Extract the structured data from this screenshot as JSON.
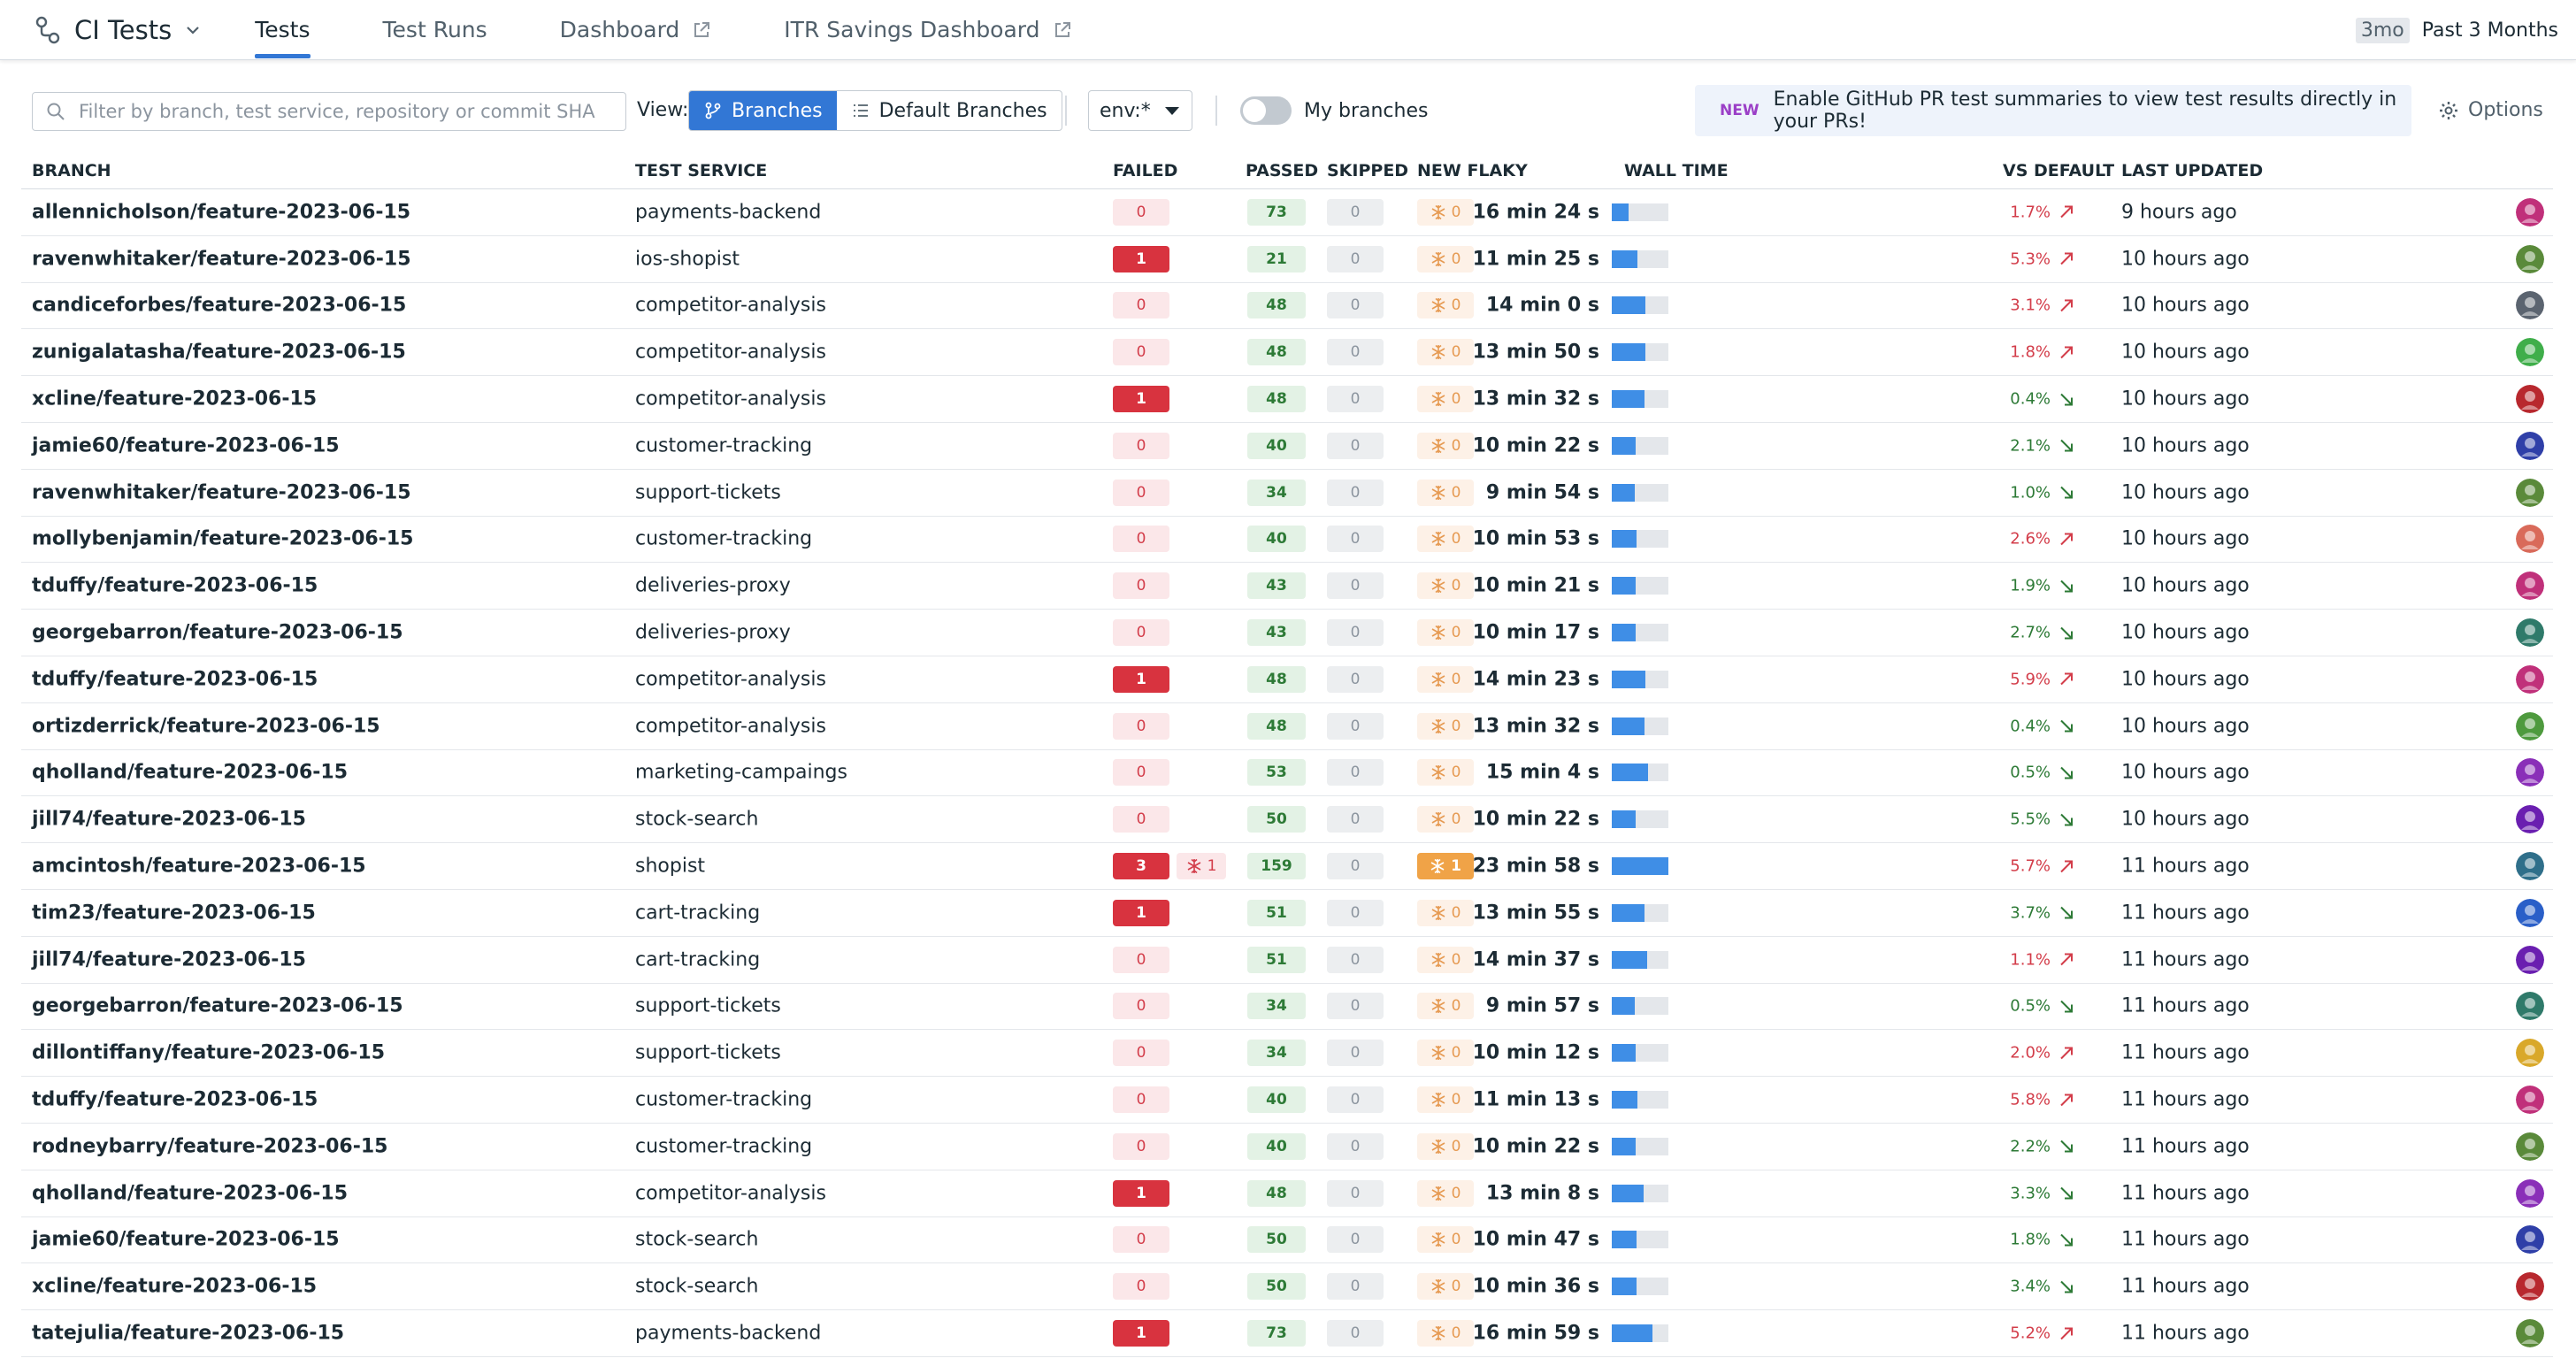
{
  "app": {
    "title": "CI Tests"
  },
  "tabs": [
    {
      "label": "Tests",
      "active": true,
      "external": false
    },
    {
      "label": "Test Runs",
      "active": false,
      "external": false
    },
    {
      "label": "Dashboard",
      "active": false,
      "external": true
    },
    {
      "label": "ITR Savings Dashboard",
      "active": false,
      "external": true
    }
  ],
  "time_range": {
    "short": "3mo",
    "label": "Past 3 Months"
  },
  "toolbar": {
    "search_placeholder": "Filter by branch, test service, repository or commit SHA",
    "view_label": "View:",
    "view_options": [
      "Branches",
      "Default Branches"
    ],
    "env_value": "env:*",
    "my_branches_label": "My branches",
    "banner_tag": "NEW",
    "banner_text": "Enable GitHub PR test summaries to view test results directly in your PRs!",
    "options_label": "Options"
  },
  "columns": {
    "branch": "BRANCH",
    "service": "TEST SERVICE",
    "failed": "FAILED",
    "passed": "PASSED",
    "skipped": "SKIPPED",
    "new_flaky": "NEW FLAKY",
    "wall_time": "WALL TIME",
    "vs_default": "VS DEFAULT",
    "last_updated": "LAST UPDATED"
  },
  "colors": {
    "accent": "#3277d5",
    "failed": "#d8333f",
    "passed": "#2d7a36",
    "flaky": "#e69a52"
  },
  "rows": [
    {
      "branch": "allennicholson/feature-2023-06-15",
      "service": "payments-backend",
      "failed": "0",
      "passed": "73",
      "skipped": "0",
      "new_flaky": "0",
      "wall_time": "16 min 24 s",
      "wall_fraction": 0.3,
      "vs": "1.7%",
      "dir": "up",
      "updated": "9 hours ago",
      "avatar": "#c0307a"
    },
    {
      "branch": "ravenwhitaker/feature-2023-06-15",
      "service": "ios-shopist",
      "failed": "1",
      "passed": "21",
      "skipped": "0",
      "new_flaky": "0",
      "wall_time": "11 min 25 s",
      "wall_fraction": 0.45,
      "vs": "5.3%",
      "dir": "up",
      "updated": "10 hours ago",
      "avatar": "#5a8a3a"
    },
    {
      "branch": "candiceforbes/feature-2023-06-15",
      "service": "competitor-analysis",
      "failed": "0",
      "passed": "48",
      "skipped": "0",
      "new_flaky": "0",
      "wall_time": "14 min 0 s",
      "wall_fraction": 0.6,
      "vs": "3.1%",
      "dir": "up",
      "updated": "10 hours ago",
      "avatar": "#5b6470"
    },
    {
      "branch": "zunigalatasha/feature-2023-06-15",
      "service": "competitor-analysis",
      "failed": "0",
      "passed": "48",
      "skipped": "0",
      "new_flaky": "0",
      "wall_time": "13 min 50 s",
      "wall_fraction": 0.6,
      "vs": "1.8%",
      "dir": "up",
      "updated": "10 hours ago",
      "avatar": "#3fae4a"
    },
    {
      "branch": "xcline/feature-2023-06-15",
      "service": "competitor-analysis",
      "failed": "1",
      "passed": "48",
      "skipped": "0",
      "new_flaky": "0",
      "wall_time": "13 min 32 s",
      "wall_fraction": 0.58,
      "vs": "0.4%",
      "dir": "down",
      "updated": "10 hours ago",
      "avatar": "#b8282e"
    },
    {
      "branch": "jamie60/feature-2023-06-15",
      "service": "customer-tracking",
      "failed": "0",
      "passed": "40",
      "skipped": "0",
      "new_flaky": "0",
      "wall_time": "10 min 22 s",
      "wall_fraction": 0.42,
      "vs": "2.1%",
      "dir": "down",
      "updated": "10 hours ago",
      "avatar": "#2f3fa8"
    },
    {
      "branch": "ravenwhitaker/feature-2023-06-15",
      "service": "support-tickets",
      "failed": "0",
      "passed": "34",
      "skipped": "0",
      "new_flaky": "0",
      "wall_time": "9 min 54 s",
      "wall_fraction": 0.4,
      "vs": "1.0%",
      "dir": "down",
      "updated": "10 hours ago",
      "avatar": "#5a8a3a"
    },
    {
      "branch": "mollybenjamin/feature-2023-06-15",
      "service": "customer-tracking",
      "failed": "0",
      "passed": "40",
      "skipped": "0",
      "new_flaky": "0",
      "wall_time": "10 min 53 s",
      "wall_fraction": 0.44,
      "vs": "2.6%",
      "dir": "up",
      "updated": "10 hours ago",
      "avatar": "#d96a5a"
    },
    {
      "branch": "tduffy/feature-2023-06-15",
      "service": "deliveries-proxy",
      "failed": "0",
      "passed": "43",
      "skipped": "0",
      "new_flaky": "0",
      "wall_time": "10 min 21 s",
      "wall_fraction": 0.42,
      "vs": "1.9%",
      "dir": "down",
      "updated": "10 hours ago",
      "avatar": "#c0307a"
    },
    {
      "branch": "georgebarron/feature-2023-06-15",
      "service": "deliveries-proxy",
      "failed": "0",
      "passed": "43",
      "skipped": "0",
      "new_flaky": "0",
      "wall_time": "10 min 17 s",
      "wall_fraction": 0.42,
      "vs": "2.7%",
      "dir": "down",
      "updated": "10 hours ago",
      "avatar": "#2f7a6a"
    },
    {
      "branch": "tduffy/feature-2023-06-15",
      "service": "competitor-analysis",
      "failed": "1",
      "passed": "48",
      "skipped": "0",
      "new_flaky": "0",
      "wall_time": "14 min 23 s",
      "wall_fraction": 0.6,
      "vs": "5.9%",
      "dir": "up",
      "updated": "10 hours ago",
      "avatar": "#c0307a"
    },
    {
      "branch": "ortizderrick/feature-2023-06-15",
      "service": "competitor-analysis",
      "failed": "0",
      "passed": "48",
      "skipped": "0",
      "new_flaky": "0",
      "wall_time": "13 min 32 s",
      "wall_fraction": 0.58,
      "vs": "0.4%",
      "dir": "down",
      "updated": "10 hours ago",
      "avatar": "#4e9a3e"
    },
    {
      "branch": "qholland/feature-2023-06-15",
      "service": "marketing-campaings",
      "failed": "0",
      "passed": "53",
      "skipped": "0",
      "new_flaky": "0",
      "wall_time": "15 min 4 s",
      "wall_fraction": 0.64,
      "vs": "0.5%",
      "dir": "down",
      "updated": "10 hours ago",
      "avatar": "#8a2fb8"
    },
    {
      "branch": "jill74/feature-2023-06-15",
      "service": "stock-search",
      "failed": "0",
      "passed": "50",
      "skipped": "0",
      "new_flaky": "0",
      "wall_time": "10 min 22 s",
      "wall_fraction": 0.42,
      "vs": "5.5%",
      "dir": "down",
      "updated": "10 hours ago",
      "avatar": "#6a1fb0"
    },
    {
      "branch": "amcintosh/feature-2023-06-15",
      "service": "shopist",
      "failed": "3",
      "flaky_failed": "1",
      "passed": "159",
      "skipped": "0",
      "new_flaky": "1",
      "wall_time": "23 min 58 s",
      "wall_fraction": 1.0,
      "vs": "5.7%",
      "dir": "up",
      "updated": "11 hours ago",
      "avatar": "#2f6f8a"
    },
    {
      "branch": "tim23/feature-2023-06-15",
      "service": "cart-tracking",
      "failed": "1",
      "passed": "51",
      "skipped": "0",
      "new_flaky": "0",
      "wall_time": "13 min 55 s",
      "wall_fraction": 0.58,
      "vs": "3.7%",
      "dir": "down",
      "updated": "11 hours ago",
      "avatar": "#2a5fc8"
    },
    {
      "branch": "jill74/feature-2023-06-15",
      "service": "cart-tracking",
      "failed": "0",
      "passed": "51",
      "skipped": "0",
      "new_flaky": "0",
      "wall_time": "14 min 37 s",
      "wall_fraction": 0.62,
      "vs": "1.1%",
      "dir": "up",
      "updated": "11 hours ago",
      "avatar": "#6a1fb0"
    },
    {
      "branch": "georgebarron/feature-2023-06-15",
      "service": "support-tickets",
      "failed": "0",
      "passed": "34",
      "skipped": "0",
      "new_flaky": "0",
      "wall_time": "9 min 57 s",
      "wall_fraction": 0.4,
      "vs": "0.5%",
      "dir": "down",
      "updated": "11 hours ago",
      "avatar": "#2f7a6a"
    },
    {
      "branch": "dillontiffany/feature-2023-06-15",
      "service": "support-tickets",
      "failed": "0",
      "passed": "34",
      "skipped": "0",
      "new_flaky": "0",
      "wall_time": "10 min 12 s",
      "wall_fraction": 0.42,
      "vs": "2.0%",
      "dir": "up",
      "updated": "11 hours ago",
      "avatar": "#d9a82a"
    },
    {
      "branch": "tduffy/feature-2023-06-15",
      "service": "customer-tracking",
      "failed": "0",
      "passed": "40",
      "skipped": "0",
      "new_flaky": "0",
      "wall_time": "11 min 13 s",
      "wall_fraction": 0.45,
      "vs": "5.8%",
      "dir": "up",
      "updated": "11 hours ago",
      "avatar": "#c0307a"
    },
    {
      "branch": "rodneybarry/feature-2023-06-15",
      "service": "customer-tracking",
      "failed": "0",
      "passed": "40",
      "skipped": "0",
      "new_flaky": "0",
      "wall_time": "10 min 22 s",
      "wall_fraction": 0.42,
      "vs": "2.2%",
      "dir": "down",
      "updated": "11 hours ago",
      "avatar": "#5a8a3a"
    },
    {
      "branch": "qholland/feature-2023-06-15",
      "service": "competitor-analysis",
      "failed": "1",
      "passed": "48",
      "skipped": "0",
      "new_flaky": "0",
      "wall_time": "13 min 8 s",
      "wall_fraction": 0.56,
      "vs": "3.3%",
      "dir": "down",
      "updated": "11 hours ago",
      "avatar": "#8a2fb8"
    },
    {
      "branch": "jamie60/feature-2023-06-15",
      "service": "stock-search",
      "failed": "0",
      "passed": "50",
      "skipped": "0",
      "new_flaky": "0",
      "wall_time": "10 min 47 s",
      "wall_fraction": 0.44,
      "vs": "1.8%",
      "dir": "down",
      "updated": "11 hours ago",
      "avatar": "#2f3fa8"
    },
    {
      "branch": "xcline/feature-2023-06-15",
      "service": "stock-search",
      "failed": "0",
      "passed": "50",
      "skipped": "0",
      "new_flaky": "0",
      "wall_time": "10 min 36 s",
      "wall_fraction": 0.43,
      "vs": "3.4%",
      "dir": "down",
      "updated": "11 hours ago",
      "avatar": "#b8282e"
    },
    {
      "branch": "tatejulia/feature-2023-06-15",
      "service": "payments-backend",
      "failed": "1",
      "passed": "73",
      "skipped": "0",
      "new_flaky": "0",
      "wall_time": "16 min 59 s",
      "wall_fraction": 0.72,
      "vs": "5.2%",
      "dir": "up",
      "updated": "11 hours ago",
      "avatar": "#5a8a3a"
    }
  ]
}
